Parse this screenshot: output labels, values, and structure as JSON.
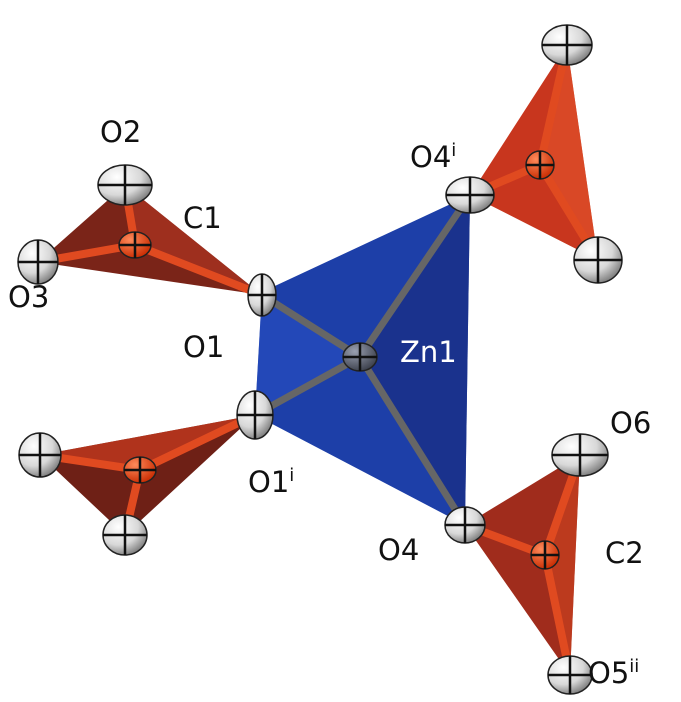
{
  "labels": [
    {
      "text": "O2"
    },
    {
      "text": "C1"
    },
    {
      "text": "O3"
    },
    {
      "text": "O1"
    },
    {
      "text": "Zn1"
    },
    {
      "text": "O4",
      "sup": "i"
    },
    {
      "text": "O1",
      "sup": "i"
    },
    {
      "text": "O4"
    },
    {
      "text": "O6"
    },
    {
      "text": "C2"
    },
    {
      "text": "O5",
      "sup": "ii"
    }
  ]
}
